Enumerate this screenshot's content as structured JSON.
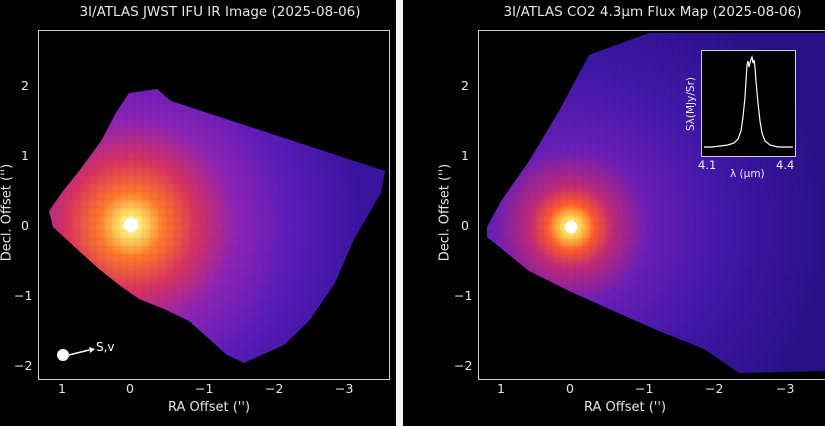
{
  "left_panel": {
    "title": "3I/ATLAS JWST IFU IR Image (2025-08-06)",
    "xlabel": "RA Offset ('')",
    "ylabel": "Decl. Offset ('')",
    "x_ticks": [
      "1",
      "0",
      "−1",
      "−2",
      "−3"
    ],
    "y_ticks": [
      "2",
      "1",
      "0",
      "−1",
      "−2"
    ],
    "direction_label": "S,v",
    "colormap": [
      "#000004",
      "#1b0b4a",
      "#4a13a0",
      "#8a1fb0",
      "#d0316e",
      "#ff6a2a",
      "#ffd23a",
      "#ffffff"
    ]
  },
  "right_panel": {
    "title": "3I/ATLAS CO2 4.3µm Flux Map (2025-08-06)",
    "xlabel": "RA Offset ('')",
    "ylabel": "Decl. Offset ('')",
    "x_ticks": [
      "1",
      "0",
      "−1",
      "−2",
      "−3"
    ],
    "y_ticks": [
      "2",
      "1",
      "0",
      "−1",
      "−2"
    ],
    "inset": {
      "ylabel": "Sλ(MJy/Sr)",
      "xlabel": "λ (µm)",
      "x_ticks": [
        "4.1",
        "4.4"
      ]
    }
  }
}
